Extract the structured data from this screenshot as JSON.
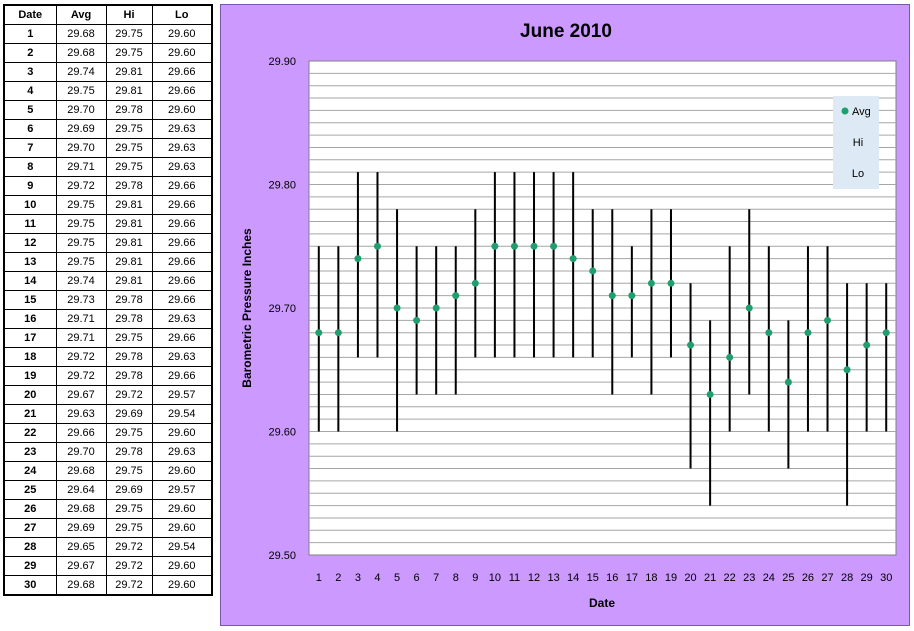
{
  "table": {
    "headers": [
      "Date",
      "Avg",
      "Hi",
      "Lo"
    ],
    "rows": [
      [
        "1",
        "29.68",
        "29.75",
        "29.60"
      ],
      [
        "2",
        "29.68",
        "29.75",
        "29.60"
      ],
      [
        "3",
        "29.74",
        "29.81",
        "29.66"
      ],
      [
        "4",
        "29.75",
        "29.81",
        "29.66"
      ],
      [
        "5",
        "29.70",
        "29.78",
        "29.60"
      ],
      [
        "6",
        "29.69",
        "29.75",
        "29.63"
      ],
      [
        "7",
        "29.70",
        "29.75",
        "29.63"
      ],
      [
        "8",
        "29.71",
        "29.75",
        "29.63"
      ],
      [
        "9",
        "29.72",
        "29.78",
        "29.66"
      ],
      [
        "10",
        "29.75",
        "29.81",
        "29.66"
      ],
      [
        "11",
        "29.75",
        "29.81",
        "29.66"
      ],
      [
        "12",
        "29.75",
        "29.81",
        "29.66"
      ],
      [
        "13",
        "29.75",
        "29.81",
        "29.66"
      ],
      [
        "14",
        "29.74",
        "29.81",
        "29.66"
      ],
      [
        "15",
        "29.73",
        "29.78",
        "29.66"
      ],
      [
        "16",
        "29.71",
        "29.78",
        "29.63"
      ],
      [
        "17",
        "29.71",
        "29.75",
        "29.66"
      ],
      [
        "18",
        "29.72",
        "29.78",
        "29.63"
      ],
      [
        "19",
        "29.72",
        "29.78",
        "29.66"
      ],
      [
        "20",
        "29.67",
        "29.72",
        "29.57"
      ],
      [
        "21",
        "29.63",
        "29.69",
        "29.54"
      ],
      [
        "22",
        "29.66",
        "29.75",
        "29.60"
      ],
      [
        "23",
        "29.70",
        "29.78",
        "29.63"
      ],
      [
        "24",
        "29.68",
        "29.75",
        "29.60"
      ],
      [
        "25",
        "29.64",
        "29.69",
        "29.57"
      ],
      [
        "26",
        "29.68",
        "29.75",
        "29.60"
      ],
      [
        "27",
        "29.69",
        "29.75",
        "29.60"
      ],
      [
        "28",
        "29.65",
        "29.72",
        "29.54"
      ],
      [
        "29",
        "29.67",
        "29.72",
        "29.60"
      ],
      [
        "30",
        "29.68",
        "29.72",
        "29.60"
      ]
    ]
  },
  "chart_data": {
    "type": "scatter",
    "title": "June 2010",
    "xlabel": "Date",
    "ylabel": "Barometric Pressure Inches",
    "x": [
      1,
      2,
      3,
      4,
      5,
      6,
      7,
      8,
      9,
      10,
      11,
      12,
      13,
      14,
      15,
      16,
      17,
      18,
      19,
      20,
      21,
      22,
      23,
      24,
      25,
      26,
      27,
      28,
      29,
      30
    ],
    "series": [
      {
        "name": "Avg",
        "values": [
          29.68,
          29.68,
          29.74,
          29.75,
          29.7,
          29.69,
          29.7,
          29.71,
          29.72,
          29.75,
          29.75,
          29.75,
          29.75,
          29.74,
          29.73,
          29.71,
          29.71,
          29.72,
          29.72,
          29.67,
          29.63,
          29.66,
          29.7,
          29.68,
          29.64,
          29.68,
          29.69,
          29.65,
          29.67,
          29.68
        ]
      },
      {
        "name": "Hi",
        "values": [
          29.75,
          29.75,
          29.81,
          29.81,
          29.78,
          29.75,
          29.75,
          29.75,
          29.78,
          29.81,
          29.81,
          29.81,
          29.81,
          29.81,
          29.78,
          29.78,
          29.75,
          29.78,
          29.78,
          29.72,
          29.69,
          29.75,
          29.78,
          29.75,
          29.69,
          29.75,
          29.75,
          29.72,
          29.72,
          29.72
        ]
      },
      {
        "name": "Lo",
        "values": [
          29.6,
          29.6,
          29.66,
          29.66,
          29.6,
          29.63,
          29.63,
          29.63,
          29.66,
          29.66,
          29.66,
          29.66,
          29.66,
          29.66,
          29.66,
          29.63,
          29.66,
          29.63,
          29.66,
          29.57,
          29.54,
          29.6,
          29.63,
          29.6,
          29.57,
          29.6,
          29.6,
          29.54,
          29.6,
          29.6
        ]
      }
    ],
    "ylim": [
      29.5,
      29.9
    ],
    "yticks": [
      "29.50",
      "29.60",
      "29.70",
      "29.80",
      "29.90"
    ],
    "grid": true,
    "legend_position": "top-right",
    "colors": {
      "avg_marker": "#1f9e6e",
      "hi_lo_bar": "#000000",
      "panel_background": "#cc99ff",
      "plot_background": "#ffffff",
      "legend_background": "#dde9f5"
    }
  }
}
